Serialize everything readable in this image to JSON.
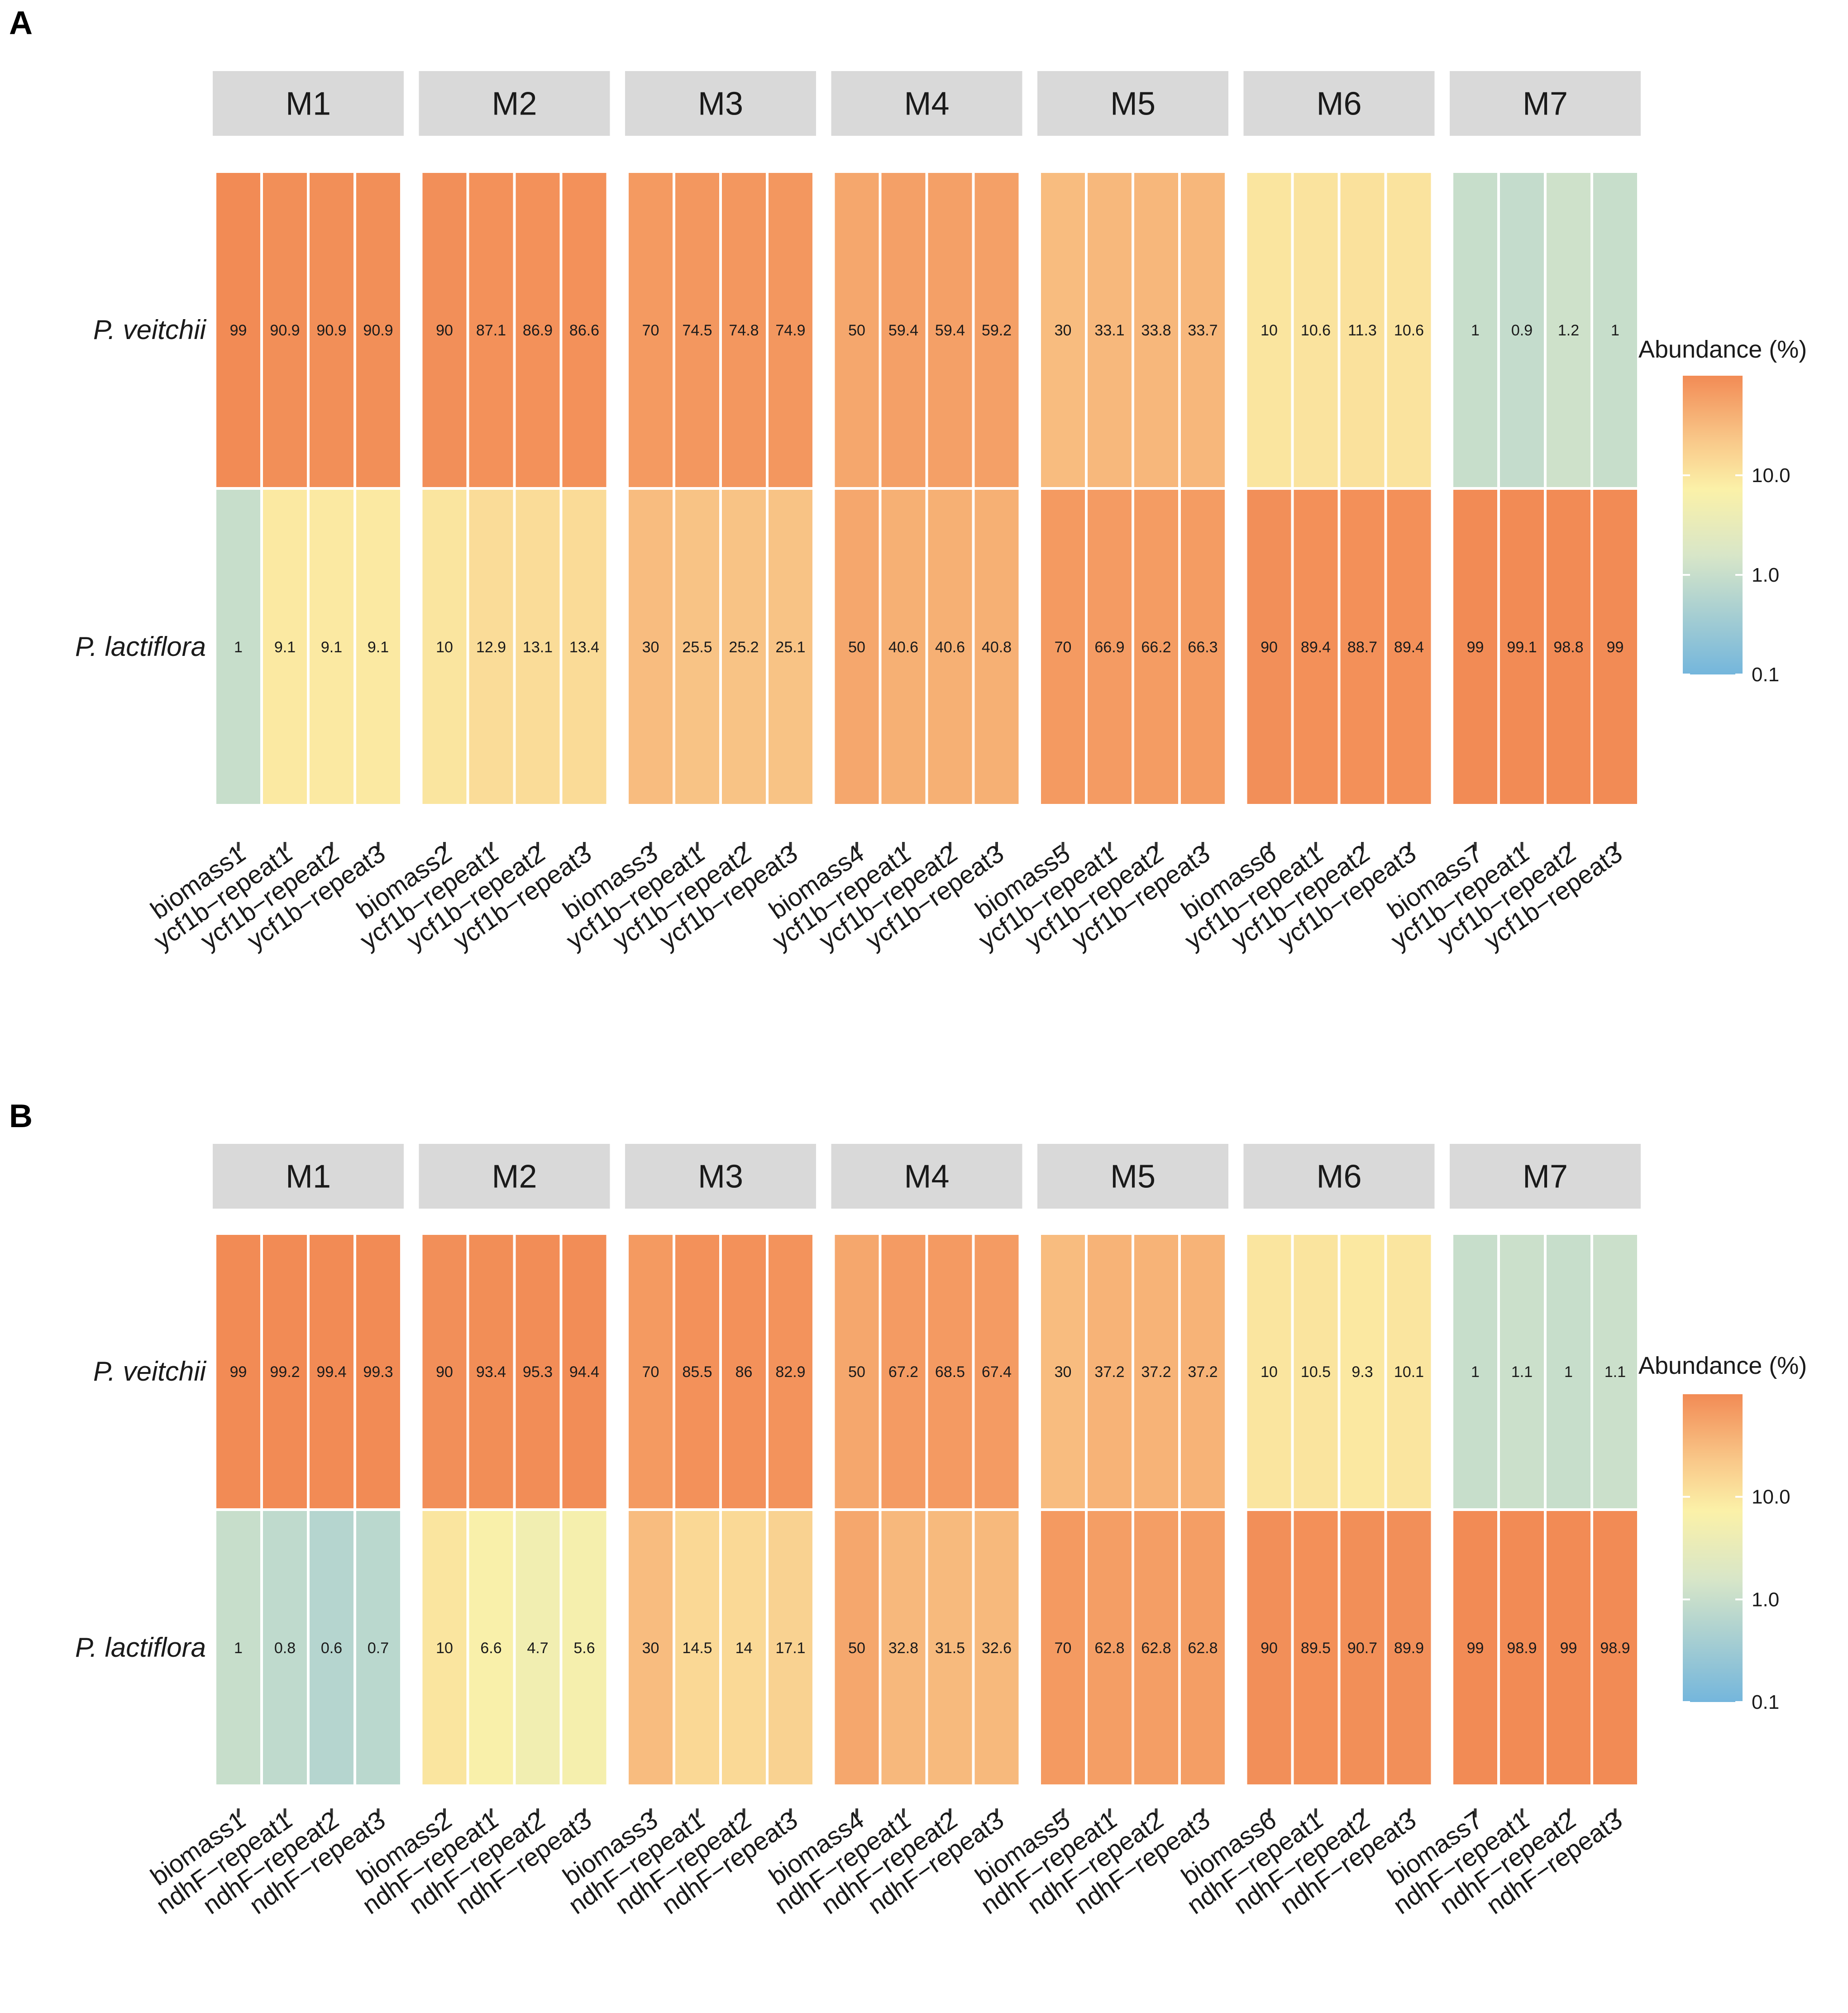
{
  "colors": {
    "low": "#74b6dc",
    "mid_low": "#d8e6c8",
    "mid": "#fbf1a8",
    "mid_high": "#f9c98a",
    "high": "#f28b55",
    "strip": "#d9d9d9",
    "cell_border": "#ffffff"
  },
  "chart_data": [
    {
      "panel": "A",
      "type": "heatmap",
      "facets": [
        "M1",
        "M2",
        "M3",
        "M4",
        "M5",
        "M6",
        "M7"
      ],
      "rows": [
        "P. veitchii",
        "P. lactiflora"
      ],
      "columns": [
        [
          "biomass1",
          "ycf1b−repeat1",
          "ycf1b−repeat2",
          "ycf1b−repeat3"
        ],
        [
          "biomass2",
          "ycf1b−repeat1",
          "ycf1b−repeat2",
          "ycf1b−repeat3"
        ],
        [
          "biomass3",
          "ycf1b−repeat1",
          "ycf1b−repeat2",
          "ycf1b−repeat3"
        ],
        [
          "biomass4",
          "ycf1b−repeat1",
          "ycf1b−repeat2",
          "ycf1b−repeat3"
        ],
        [
          "biomass5",
          "ycf1b−repeat1",
          "ycf1b−repeat2",
          "ycf1b−repeat3"
        ],
        [
          "biomass6",
          "ycf1b−repeat1",
          "ycf1b−repeat2",
          "ycf1b−repeat3"
        ],
        [
          "biomass7",
          "ycf1b−repeat1",
          "ycf1b−repeat2",
          "ycf1b−repeat3"
        ]
      ],
      "values": {
        "P. veitchii": [
          [
            "99",
            "90.9",
            "90.9",
            "90.9"
          ],
          [
            "90",
            "87.1",
            "86.9",
            "86.6"
          ],
          [
            "70",
            "74.5",
            "74.8",
            "74.9"
          ],
          [
            "50",
            "59.4",
            "59.4",
            "59.2"
          ],
          [
            "30",
            "33.1",
            "33.8",
            "33.7"
          ],
          [
            "10",
            "10.6",
            "11.3",
            "10.6"
          ],
          [
            "1",
            "0.9",
            "1.2",
            "1"
          ]
        ],
        "P. lactiflora": [
          [
            "1",
            "9.1",
            "9.1",
            "9.1"
          ],
          [
            "10",
            "12.9",
            "13.1",
            "13.4"
          ],
          [
            "30",
            "25.5",
            "25.2",
            "25.1"
          ],
          [
            "50",
            "40.6",
            "40.6",
            "40.8"
          ],
          [
            "70",
            "66.9",
            "66.2",
            "66.3"
          ],
          [
            "90",
            "89.4",
            "88.7",
            "89.4"
          ],
          [
            "99",
            "99.1",
            "98.8",
            "99"
          ]
        ]
      },
      "legend": {
        "title": "Abundance (%)",
        "scale": "log10",
        "ticks": [
          "10.0",
          "1.0",
          "0.1"
        ],
        "range": [
          0.1,
          100
        ]
      }
    },
    {
      "panel": "B",
      "type": "heatmap",
      "facets": [
        "M1",
        "M2",
        "M3",
        "M4",
        "M5",
        "M6",
        "M7"
      ],
      "rows": [
        "P. veitchii",
        "P. lactiflora"
      ],
      "columns": [
        [
          "biomass1",
          "ndhF−repeat1",
          "ndhF−repeat2",
          "ndhF−repeat3"
        ],
        [
          "biomass2",
          "ndhF−repeat1",
          "ndhF−repeat2",
          "ndhF−repeat3"
        ],
        [
          "biomass3",
          "ndhF−repeat1",
          "ndhF−repeat2",
          "ndhF−repeat3"
        ],
        [
          "biomass4",
          "ndhF−repeat1",
          "ndhF−repeat2",
          "ndhF−repeat3"
        ],
        [
          "biomass5",
          "ndhF−repeat1",
          "ndhF−repeat2",
          "ndhF−repeat3"
        ],
        [
          "biomass6",
          "ndhF−repeat1",
          "ndhF−repeat2",
          "ndhF−repeat3"
        ],
        [
          "biomass7",
          "ndhF−repeat1",
          "ndhF−repeat2",
          "ndhF−repeat3"
        ]
      ],
      "values": {
        "P. veitchii": [
          [
            "99",
            "99.2",
            "99.4",
            "99.3"
          ],
          [
            "90",
            "93.4",
            "95.3",
            "94.4"
          ],
          [
            "70",
            "85.5",
            "86",
            "82.9"
          ],
          [
            "50",
            "67.2",
            "68.5",
            "67.4"
          ],
          [
            "30",
            "37.2",
            "37.2",
            "37.2"
          ],
          [
            "10",
            "10.5",
            "9.3",
            "10.1"
          ],
          [
            "1",
            "1.1",
            "1",
            "1.1"
          ]
        ],
        "P. lactiflora": [
          [
            "1",
            "0.8",
            "0.6",
            "0.7"
          ],
          [
            "10",
            "6.6",
            "4.7",
            "5.6"
          ],
          [
            "30",
            "14.5",
            "14",
            "17.1"
          ],
          [
            "50",
            "32.8",
            "31.5",
            "32.6"
          ],
          [
            "70",
            "62.8",
            "62.8",
            "62.8"
          ],
          [
            "90",
            "89.5",
            "90.7",
            "89.9"
          ],
          [
            "99",
            "98.9",
            "99",
            "98.9"
          ]
        ]
      },
      "legend": {
        "title": "Abundance (%)",
        "scale": "log10",
        "ticks": [
          "10.0",
          "1.0",
          "0.1"
        ],
        "range": [
          0.1,
          100
        ]
      }
    }
  ]
}
